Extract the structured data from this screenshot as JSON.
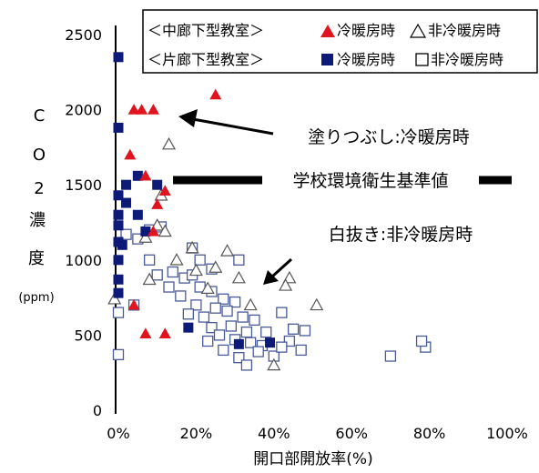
{
  "chart_data": {
    "type": "scatter",
    "xlabel": "開口部開放率(%)",
    "ylabel_chars": [
      "C",
      "O",
      "2",
      "濃",
      "度"
    ],
    "ylabel_unit": "(ppm)",
    "xlim": [
      0,
      100
    ],
    "ylim": [
      0,
      2600
    ],
    "x_ticks": [
      0,
      20,
      40,
      60,
      80,
      100
    ],
    "x_tick_labels": [
      "0%",
      "20%",
      "40%",
      "60%",
      "80%",
      "100%"
    ],
    "y_ticks": [
      0,
      500,
      1000,
      1500,
      2000,
      2500
    ],
    "y_tick_labels": [
      "0",
      "500",
      "1000",
      "1500",
      "2000",
      "2500"
    ],
    "grid": false,
    "legend": {
      "row1": {
        "group": "＜中廊下型教室＞",
        "filled": "冷暖房時",
        "open": "非冷暖房時"
      },
      "row2": {
        "group": "＜片廊下型教室＞",
        "filled": "冷暖房時",
        "open": "非冷暖房時"
      }
    },
    "annotations": {
      "filled_note": "塗りつぶし:冷暖房時",
      "standard_note": "学校環境衛生基準値",
      "open_note": "白抜き:非冷暖房時"
    },
    "reference_line": {
      "y": 1500
    },
    "colors": {
      "red": "#e0141e",
      "navy": "#0d1a78",
      "open": "#4a5a99",
      "axis": "#000000"
    },
    "series": [
      {
        "name": "中廊下型教室 冷暖房時",
        "marker": "triangle-filled",
        "points": [
          [
            4,
            2000
          ],
          [
            6,
            2000
          ],
          [
            9,
            2000
          ],
          [
            25,
            2100
          ],
          [
            3,
            1700
          ],
          [
            7,
            1560
          ],
          [
            12,
            1460
          ],
          [
            10,
            1370
          ],
          [
            4,
            700
          ],
          [
            7,
            510
          ],
          [
            12,
            510
          ],
          [
            9,
            1190
          ]
        ]
      },
      {
        "name": "中廊下型教室 非冷暖房時",
        "marker": "triangle-open",
        "points": [
          [
            13,
            1770
          ],
          [
            11,
            1430
          ],
          [
            10,
            1230
          ],
          [
            12,
            1190
          ],
          [
            19,
            1080
          ],
          [
            28,
            1060
          ],
          [
            7,
            1150
          ],
          [
            15,
            1000
          ],
          [
            20,
            930
          ],
          [
            31,
            880
          ],
          [
            44,
            880
          ],
          [
            43,
            830
          ],
          [
            51,
            700
          ],
          [
            -1,
            740
          ],
          [
            40,
            300
          ],
          [
            8,
            870
          ],
          [
            25,
            950
          ],
          [
            34,
            700
          ],
          [
            23,
            810
          ]
        ]
      },
      {
        "name": "片廊下型教室 冷暖房時",
        "marker": "square-filled",
        "points": [
          [
            0,
            2350
          ],
          [
            0,
            1880
          ],
          [
            2,
            1500
          ],
          [
            5,
            1560
          ],
          [
            10,
            1500
          ],
          [
            0,
            1430
          ],
          [
            2,
            1380
          ],
          [
            0,
            1300
          ],
          [
            0,
            1230
          ],
          [
            5,
            1300
          ],
          [
            7,
            1190
          ],
          [
            0,
            1120
          ],
          [
            1,
            1100
          ],
          [
            0,
            1000
          ],
          [
            0,
            870
          ],
          [
            0,
            780
          ],
          [
            18,
            550
          ],
          [
            39,
            450
          ],
          [
            31,
            440
          ]
        ]
      },
      {
        "name": "片廊下型教室 非冷暖房時",
        "marker": "square-open",
        "points": [
          [
            0,
            650
          ],
          [
            0,
            370
          ],
          [
            4,
            700
          ],
          [
            2,
            1170
          ],
          [
            5,
            1140
          ],
          [
            8,
            1200
          ],
          [
            11,
            1220
          ],
          [
            8,
            1000
          ],
          [
            10,
            900
          ],
          [
            14,
            920
          ],
          [
            17,
            880
          ],
          [
            19,
            900
          ],
          [
            21,
            820
          ],
          [
            13,
            820
          ],
          [
            16,
            760
          ],
          [
            24,
            790
          ],
          [
            27,
            740
          ],
          [
            30,
            720
          ],
          [
            25,
            680
          ],
          [
            28,
            660
          ],
          [
            32,
            620
          ],
          [
            35,
            600
          ],
          [
            22,
            620
          ],
          [
            20,
            700
          ],
          [
            18,
            640
          ],
          [
            24,
            550
          ],
          [
            29,
            560
          ],
          [
            33,
            520
          ],
          [
            38,
            520
          ],
          [
            42,
            650
          ],
          [
            45,
            540
          ],
          [
            48,
            530
          ],
          [
            44,
            460
          ],
          [
            47,
            400
          ],
          [
            37,
            430
          ],
          [
            34,
            450
          ],
          [
            30,
            470
          ],
          [
            26,
            500
          ],
          [
            23,
            460
          ],
          [
            40,
            360
          ],
          [
            31,
            350
          ],
          [
            36,
            390
          ],
          [
            42,
            420
          ],
          [
            27,
            400
          ],
          [
            33,
            300
          ],
          [
            70,
            360
          ],
          [
            79,
            420
          ],
          [
            78,
            460
          ],
          [
            21,
            1000
          ],
          [
            31,
            1000
          ],
          [
            24,
            940
          ],
          [
            19,
            1080
          ]
        ]
      }
    ]
  }
}
